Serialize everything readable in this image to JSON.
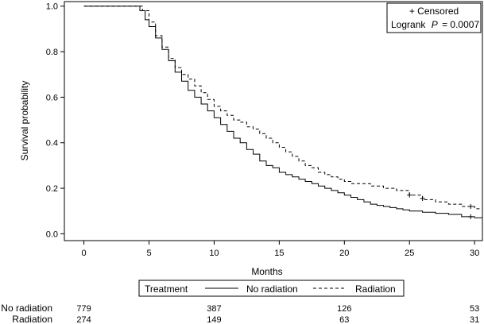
{
  "chart_data": {
    "type": "line",
    "subtype": "kaplan-meier",
    "title": "",
    "xlabel": "Months",
    "ylabel": "Survival probability",
    "xlim": [
      -1.5,
      30.6
    ],
    "ylim": [
      -0.03,
      1.02
    ],
    "xticks": [
      0,
      5,
      10,
      15,
      20,
      25,
      30
    ],
    "yticks": [
      "0.0",
      "0.2",
      "0.4",
      "0.6",
      "0.8",
      "1.0"
    ],
    "grid": false,
    "annotation": {
      "censored_label": "+ Censored",
      "logrank_label": "Logrank",
      "p_symbol": "P",
      "p_value": "= 0.0007",
      "placement": "top-right"
    },
    "legend": {
      "title": "Treatment",
      "placement": "bottom"
    },
    "series": [
      {
        "name": "No radiation",
        "style": "solid",
        "color": "#000000",
        "points": [
          [
            0,
            1.0
          ],
          [
            4.0,
            1.0
          ],
          [
            4.3,
            0.98
          ],
          [
            4.7,
            0.94
          ],
          [
            5.0,
            0.91
          ],
          [
            5.5,
            0.86
          ],
          [
            6.0,
            0.81
          ],
          [
            6.5,
            0.76
          ],
          [
            7.0,
            0.71
          ],
          [
            7.5,
            0.67
          ],
          [
            8.0,
            0.63
          ],
          [
            8.5,
            0.6
          ],
          [
            9.0,
            0.57
          ],
          [
            9.5,
            0.54
          ],
          [
            10.0,
            0.51
          ],
          [
            10.5,
            0.48
          ],
          [
            11.0,
            0.45
          ],
          [
            11.5,
            0.42
          ],
          [
            12.0,
            0.4
          ],
          [
            12.5,
            0.37
          ],
          [
            13.0,
            0.35
          ],
          [
            13.5,
            0.32
          ],
          [
            14.0,
            0.3
          ],
          [
            14.5,
            0.29
          ],
          [
            15.0,
            0.27
          ],
          [
            15.5,
            0.26
          ],
          [
            16.0,
            0.25
          ],
          [
            16.5,
            0.24
          ],
          [
            17.0,
            0.23
          ],
          [
            17.5,
            0.22
          ],
          [
            18.0,
            0.21
          ],
          [
            18.5,
            0.2
          ],
          [
            19.0,
            0.19
          ],
          [
            19.5,
            0.18
          ],
          [
            20.0,
            0.17
          ],
          [
            20.5,
            0.16
          ],
          [
            21.0,
            0.15
          ],
          [
            21.5,
            0.14
          ],
          [
            22.0,
            0.13
          ],
          [
            22.5,
            0.125
          ],
          [
            23.0,
            0.12
          ],
          [
            23.5,
            0.115
          ],
          [
            24.0,
            0.11
          ],
          [
            24.5,
            0.105
          ],
          [
            25.0,
            0.1
          ],
          [
            26.0,
            0.095
          ],
          [
            27.0,
            0.09
          ],
          [
            28.0,
            0.085
          ],
          [
            29.0,
            0.075
          ],
          [
            30.0,
            0.07
          ],
          [
            30.6,
            0.07
          ]
        ],
        "censored": [
          [
            29.7,
            0.075
          ]
        ],
        "at_risk": [
          779,
          387,
          126,
          53
        ]
      },
      {
        "name": "Radiation",
        "style": "dashed",
        "color": "#000000",
        "points": [
          [
            0,
            1.0
          ],
          [
            4.0,
            1.0
          ],
          [
            4.5,
            0.98
          ],
          [
            5.0,
            0.93
          ],
          [
            5.5,
            0.87
          ],
          [
            6.0,
            0.82
          ],
          [
            6.5,
            0.77
          ],
          [
            7.0,
            0.73
          ],
          [
            7.5,
            0.7
          ],
          [
            8.0,
            0.68
          ],
          [
            8.5,
            0.65
          ],
          [
            9.0,
            0.62
          ],
          [
            9.5,
            0.59
          ],
          [
            10.0,
            0.56
          ],
          [
            10.5,
            0.54
          ],
          [
            11.0,
            0.52
          ],
          [
            11.5,
            0.5
          ],
          [
            12.0,
            0.49
          ],
          [
            12.5,
            0.47
          ],
          [
            13.0,
            0.46
          ],
          [
            13.5,
            0.44
          ],
          [
            14.0,
            0.42
          ],
          [
            14.5,
            0.4
          ],
          [
            15.0,
            0.38
          ],
          [
            15.5,
            0.36
          ],
          [
            16.0,
            0.34
          ],
          [
            16.5,
            0.32
          ],
          [
            17.0,
            0.3
          ],
          [
            17.5,
            0.29
          ],
          [
            18.0,
            0.27
          ],
          [
            18.5,
            0.26
          ],
          [
            19.0,
            0.25
          ],
          [
            19.5,
            0.24
          ],
          [
            20.0,
            0.23
          ],
          [
            20.5,
            0.22
          ],
          [
            21.0,
            0.22
          ],
          [
            22.0,
            0.21
          ],
          [
            23.0,
            0.2
          ],
          [
            24.0,
            0.19
          ],
          [
            25.0,
            0.17
          ],
          [
            26.0,
            0.15
          ],
          [
            27.0,
            0.14
          ],
          [
            28.0,
            0.13
          ],
          [
            29.0,
            0.12
          ],
          [
            30.0,
            0.11
          ],
          [
            30.6,
            0.11
          ]
        ],
        "censored": [
          [
            25.0,
            0.17
          ],
          [
            26.0,
            0.155
          ],
          [
            29.7,
            0.12
          ]
        ],
        "at_risk": [
          274,
          149,
          63,
          31
        ]
      }
    ],
    "at_risk_times": [
      0,
      10,
      20,
      30
    ]
  }
}
